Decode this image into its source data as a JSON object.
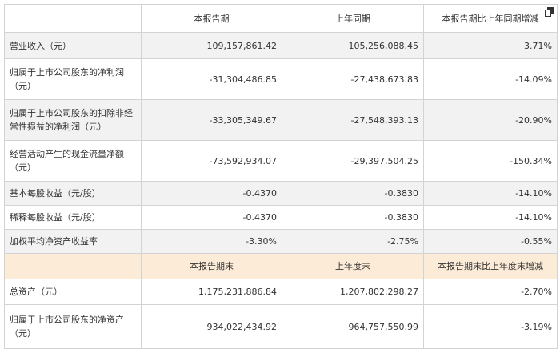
{
  "header": {
    "col1": "",
    "col2": "本报告期",
    "col3": "上年同期",
    "col4": "本报告期比上年同期增减"
  },
  "rows": [
    {
      "label": "营业收入（元）",
      "current": "109,157,861.42",
      "prior": "105,256,088.45",
      "change": "3.71%"
    },
    {
      "label": "归属于上市公司股东的净利润（元）",
      "current": "-31,304,486.85",
      "prior": "-27,438,673.83",
      "change": "-14.09%"
    },
    {
      "label": "归属于上市公司股东的扣除非经常性损益的净利润（元）",
      "current": "-33,305,349.67",
      "prior": "-27,548,393.13",
      "change": "-20.90%"
    },
    {
      "label": "经营活动产生的现金流量净额（元）",
      "current": "-73,592,934.07",
      "prior": "-29,397,504.25",
      "change": "-150.34%"
    },
    {
      "label": "基本每股收益（元/股）",
      "current": "-0.4370",
      "prior": "-0.3830",
      "change": "-14.10%"
    },
    {
      "label": "稀释每股收益（元/股）",
      "current": "-0.4370",
      "prior": "-0.3830",
      "change": "-14.10%"
    },
    {
      "label": "加权平均净资产收益率",
      "current": "-3.30%",
      "prior": "-2.75%",
      "change": "-0.55%"
    }
  ],
  "section2": {
    "col1": "",
    "col2": "本报告期末",
    "col3": "上年度末",
    "col4": "本报告期末比上年度末增减"
  },
  "rows2": [
    {
      "label": "总资产（元）",
      "current": "1,175,231,886.84",
      "prior": "1,207,802,298.27",
      "change": "-2.70%"
    },
    {
      "label": "归属于上市公司股东的净资产（元）",
      "current": "934,022,434.92",
      "prior": "964,757,550.99",
      "change": "-3.19%"
    }
  ],
  "icons": {
    "copy": "copy-icon"
  },
  "colors": {
    "stripe": "#f2f2f2",
    "section_header": "#fcebd6",
    "border": "#d3d3d3",
    "text": "#333333"
  }
}
